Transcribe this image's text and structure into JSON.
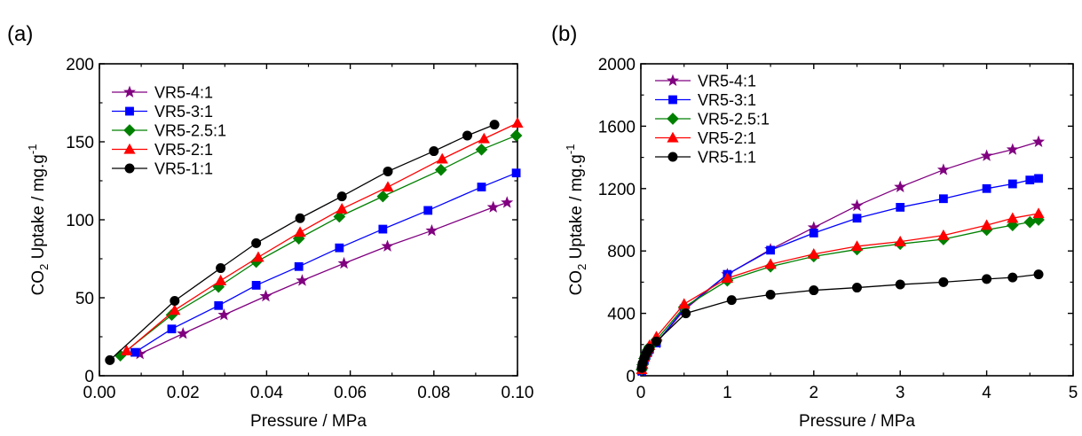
{
  "chart_data": [
    {
      "panel_label": "(a)",
      "type": "line",
      "xlabel": "Pressure / MPa",
      "ylabel_main": "CO",
      "ylabel_sub": "2",
      "ylabel_rest": " Uptake / mg.g",
      "ylabel_sup": "-1",
      "xlim": [
        0,
        0.1
      ],
      "ylim": [
        0,
        200
      ],
      "xticks": [
        0.0,
        0.02,
        0.04,
        0.06,
        0.08,
        0.1
      ],
      "xtick_labels": [
        "0.00",
        "0.02",
        "0.04",
        "0.06",
        "0.08",
        "0.10"
      ],
      "yticks": [
        0,
        50,
        100,
        150,
        200
      ],
      "ytick_labels": [
        "0",
        "50",
        "100",
        "150",
        "200"
      ],
      "legend_position": "top-left",
      "series": [
        {
          "name": "VR5-4:1",
          "color": "#800080",
          "marker": "star",
          "x": [
            0.0097,
            0.02,
            0.0298,
            0.0398,
            0.0485,
            0.0585,
            0.0689,
            0.0795,
            0.0942,
            0.0975
          ],
          "y": [
            14,
            27,
            39,
            51,
            61,
            72,
            83,
            93,
            108,
            111
          ]
        },
        {
          "name": "VR5-3:1",
          "color": "#0000ff",
          "marker": "square",
          "x": [
            0.0085,
            0.0173,
            0.0285,
            0.0375,
            0.0477,
            0.0574,
            0.0678,
            0.0786,
            0.0914,
            0.0997
          ],
          "y": [
            15,
            30,
            45,
            58,
            70,
            82,
            94,
            106,
            121,
            130
          ]
        },
        {
          "name": "VR5-2.5:1",
          "color": "#008000",
          "marker": "diamond",
          "x": [
            0.005,
            0.0173,
            0.0285,
            0.0375,
            0.0477,
            0.0574,
            0.0678,
            0.0817,
            0.0914,
            0.0997
          ],
          "y": [
            13,
            39,
            57,
            73,
            88,
            102,
            115,
            132,
            145,
            154
          ]
        },
        {
          "name": "VR5-2:1",
          "color": "#ff0000",
          "marker": "triangle",
          "x": [
            0.0065,
            0.018,
            0.029,
            0.038,
            0.048,
            0.058,
            0.069,
            0.082,
            0.092,
            0.1
          ],
          "y": [
            16,
            42,
            61,
            76,
            92,
            107,
            121,
            139,
            152,
            162
          ]
        },
        {
          "name": "VR5-1:1",
          "color": "#000000",
          "marker": "circle",
          "x": [
            0.0025,
            0.018,
            0.029,
            0.0375,
            0.048,
            0.058,
            0.069,
            0.08,
            0.088,
            0.0945
          ],
          "y": [
            10,
            48,
            69,
            85,
            101,
            115,
            131,
            144,
            154,
            161
          ]
        }
      ]
    },
    {
      "panel_label": "(b)",
      "type": "line",
      "xlabel": "Pressure / MPa",
      "ylabel_main": "CO",
      "ylabel_sub": "2",
      "ylabel_rest": " Uptake / mg.g",
      "ylabel_sup": "-1",
      "xlim": [
        0,
        5
      ],
      "ylim": [
        0,
        2000
      ],
      "xticks": [
        0,
        1,
        2,
        3,
        4,
        5
      ],
      "xtick_labels": [
        "0",
        "1",
        "2",
        "3",
        "4",
        "5"
      ],
      "yticks": [
        0,
        400,
        800,
        1200,
        1600,
        2000
      ],
      "ytick_labels": [
        "0",
        "400",
        "800",
        "1200",
        "1600",
        "2000"
      ],
      "legend_position": "top-left",
      "series": [
        {
          "name": "VR5-4:1",
          "color": "#800080",
          "marker": "star",
          "x": [
            0.01,
            0.02,
            0.04,
            0.06,
            0.08,
            0.1,
            0.18,
            0.5,
            1.0,
            1.5,
            2.0,
            2.5,
            3.0,
            3.5,
            4.0,
            4.3,
            4.6
          ],
          "y": [
            30,
            60,
            100,
            130,
            150,
            170,
            210,
            420,
            650,
            810,
            950,
            1090,
            1210,
            1320,
            1410,
            1450,
            1500
          ]
        },
        {
          "name": "VR5-3:1",
          "color": "#0000ff",
          "marker": "square",
          "x": [
            0.01,
            0.02,
            0.04,
            0.06,
            0.08,
            0.1,
            0.18,
            0.5,
            1.0,
            1.5,
            2.0,
            2.5,
            3.0,
            3.5,
            4.0,
            4.3,
            4.5,
            4.6
          ],
          "y": [
            30,
            60,
            100,
            130,
            150,
            170,
            210,
            430,
            650,
            805,
            915,
            1010,
            1080,
            1135,
            1200,
            1230,
            1255,
            1265
          ]
        },
        {
          "name": "VR5-2.5:1",
          "color": "#008000",
          "marker": "diamond",
          "x": [
            0.01,
            0.02,
            0.04,
            0.06,
            0.08,
            0.1,
            0.18,
            0.5,
            1.0,
            1.5,
            2.0,
            2.5,
            3.0,
            3.5,
            4.0,
            4.3,
            4.5,
            4.6
          ],
          "y": [
            40,
            70,
            110,
            140,
            165,
            185,
            230,
            440,
            610,
            700,
            765,
            810,
            845,
            875,
            935,
            965,
            985,
            1000
          ]
        },
        {
          "name": "VR5-2:1",
          "color": "#ff0000",
          "marker": "triangle",
          "x": [
            0.01,
            0.02,
            0.04,
            0.06,
            0.08,
            0.1,
            0.18,
            0.5,
            1.0,
            1.5,
            2.0,
            2.5,
            3.0,
            3.5,
            4.0,
            4.3,
            4.6
          ],
          "y": [
            40,
            75,
            120,
            150,
            175,
            195,
            250,
            460,
            625,
            715,
            780,
            830,
            860,
            900,
            965,
            1010,
            1040
          ]
        },
        {
          "name": "VR5-1:1",
          "color": "#000000",
          "marker": "circle",
          "x": [
            0.01,
            0.02,
            0.04,
            0.06,
            0.08,
            0.1,
            0.18,
            0.52,
            1.05,
            1.5,
            2.0,
            2.5,
            3.0,
            3.5,
            4.0,
            4.3,
            4.6
          ],
          "y": [
            50,
            80,
            115,
            140,
            160,
            175,
            220,
            400,
            485,
            520,
            548,
            565,
            585,
            600,
            620,
            630,
            650
          ]
        }
      ]
    }
  ]
}
